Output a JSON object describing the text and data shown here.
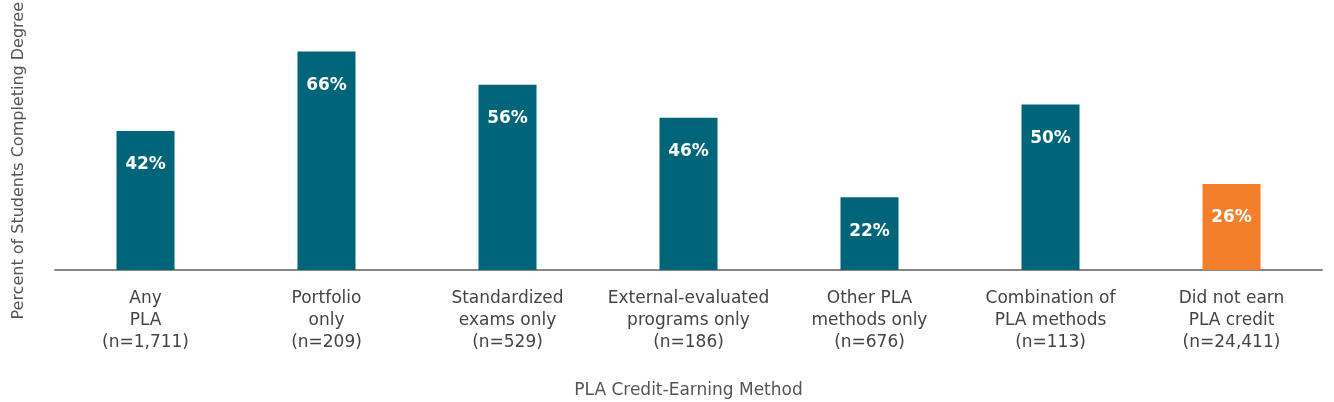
{
  "chart_data": {
    "type": "bar",
    "xlabel": "PLA Credit-Earning Method",
    "ylabel": "Percent of Students Completing Degree",
    "categories": [
      "Any\nPLA\n(n=1,711)",
      "Portfolio\nonly\n(n=209)",
      "Standardized\nexams only\n(n=529)",
      "External-evaluated\nprograms only\n(n=186)",
      "Other PLA\nmethods only\n(n=676)",
      "Combination of\nPLA methods\n(n=113)",
      "Did not earn\nPLA credit\n(n=24,411)"
    ],
    "values": [
      42,
      66,
      56,
      46,
      22,
      50,
      26
    ],
    "colors": [
      "#006579",
      "#006579",
      "#006579",
      "#006579",
      "#006579",
      "#006579",
      "#f47f2a"
    ],
    "value_labels": [
      "42%",
      "66%",
      "56%",
      "46%",
      "22%",
      "50%",
      "26%"
    ],
    "tick_labels": "x"
  }
}
